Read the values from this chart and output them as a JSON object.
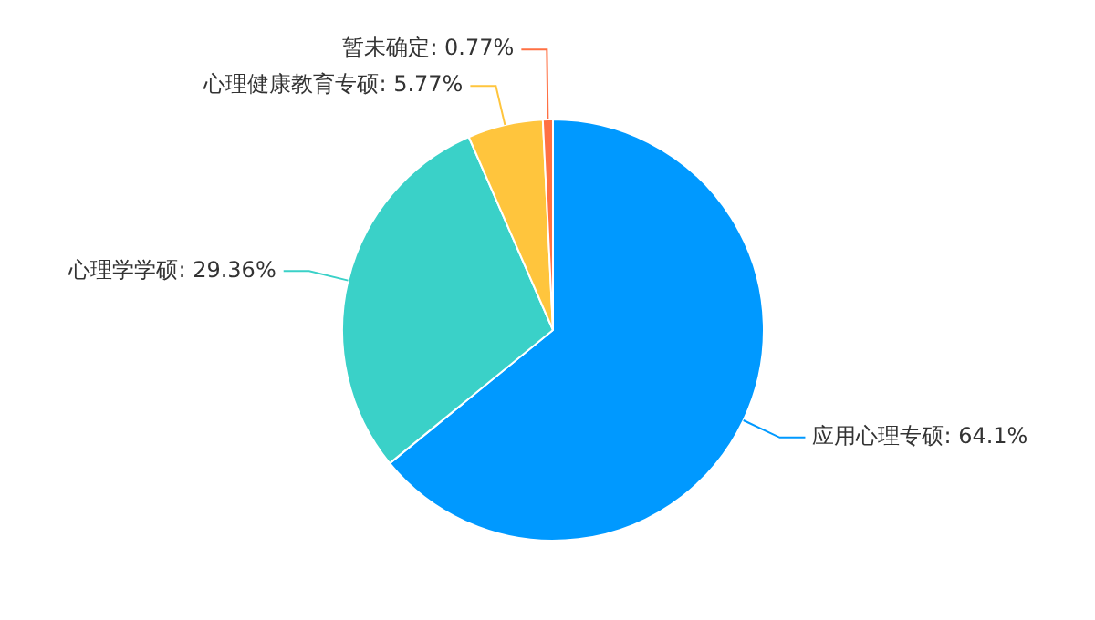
{
  "chart_data": {
    "type": "pie",
    "categories": [
      "应用心理专硕",
      "心理学学硕",
      "心理健康教育专硕",
      "暂未确定"
    ],
    "values": [
      64.1,
      29.36,
      5.77,
      0.77
    ],
    "value_labels": [
      "64.1%",
      "29.36%",
      "5.77%",
      "0.77%"
    ],
    "colors": [
      "#0099ff",
      "#3ad1c8",
      "#ffc53d",
      "#ff7043"
    ],
    "legend": false
  }
}
